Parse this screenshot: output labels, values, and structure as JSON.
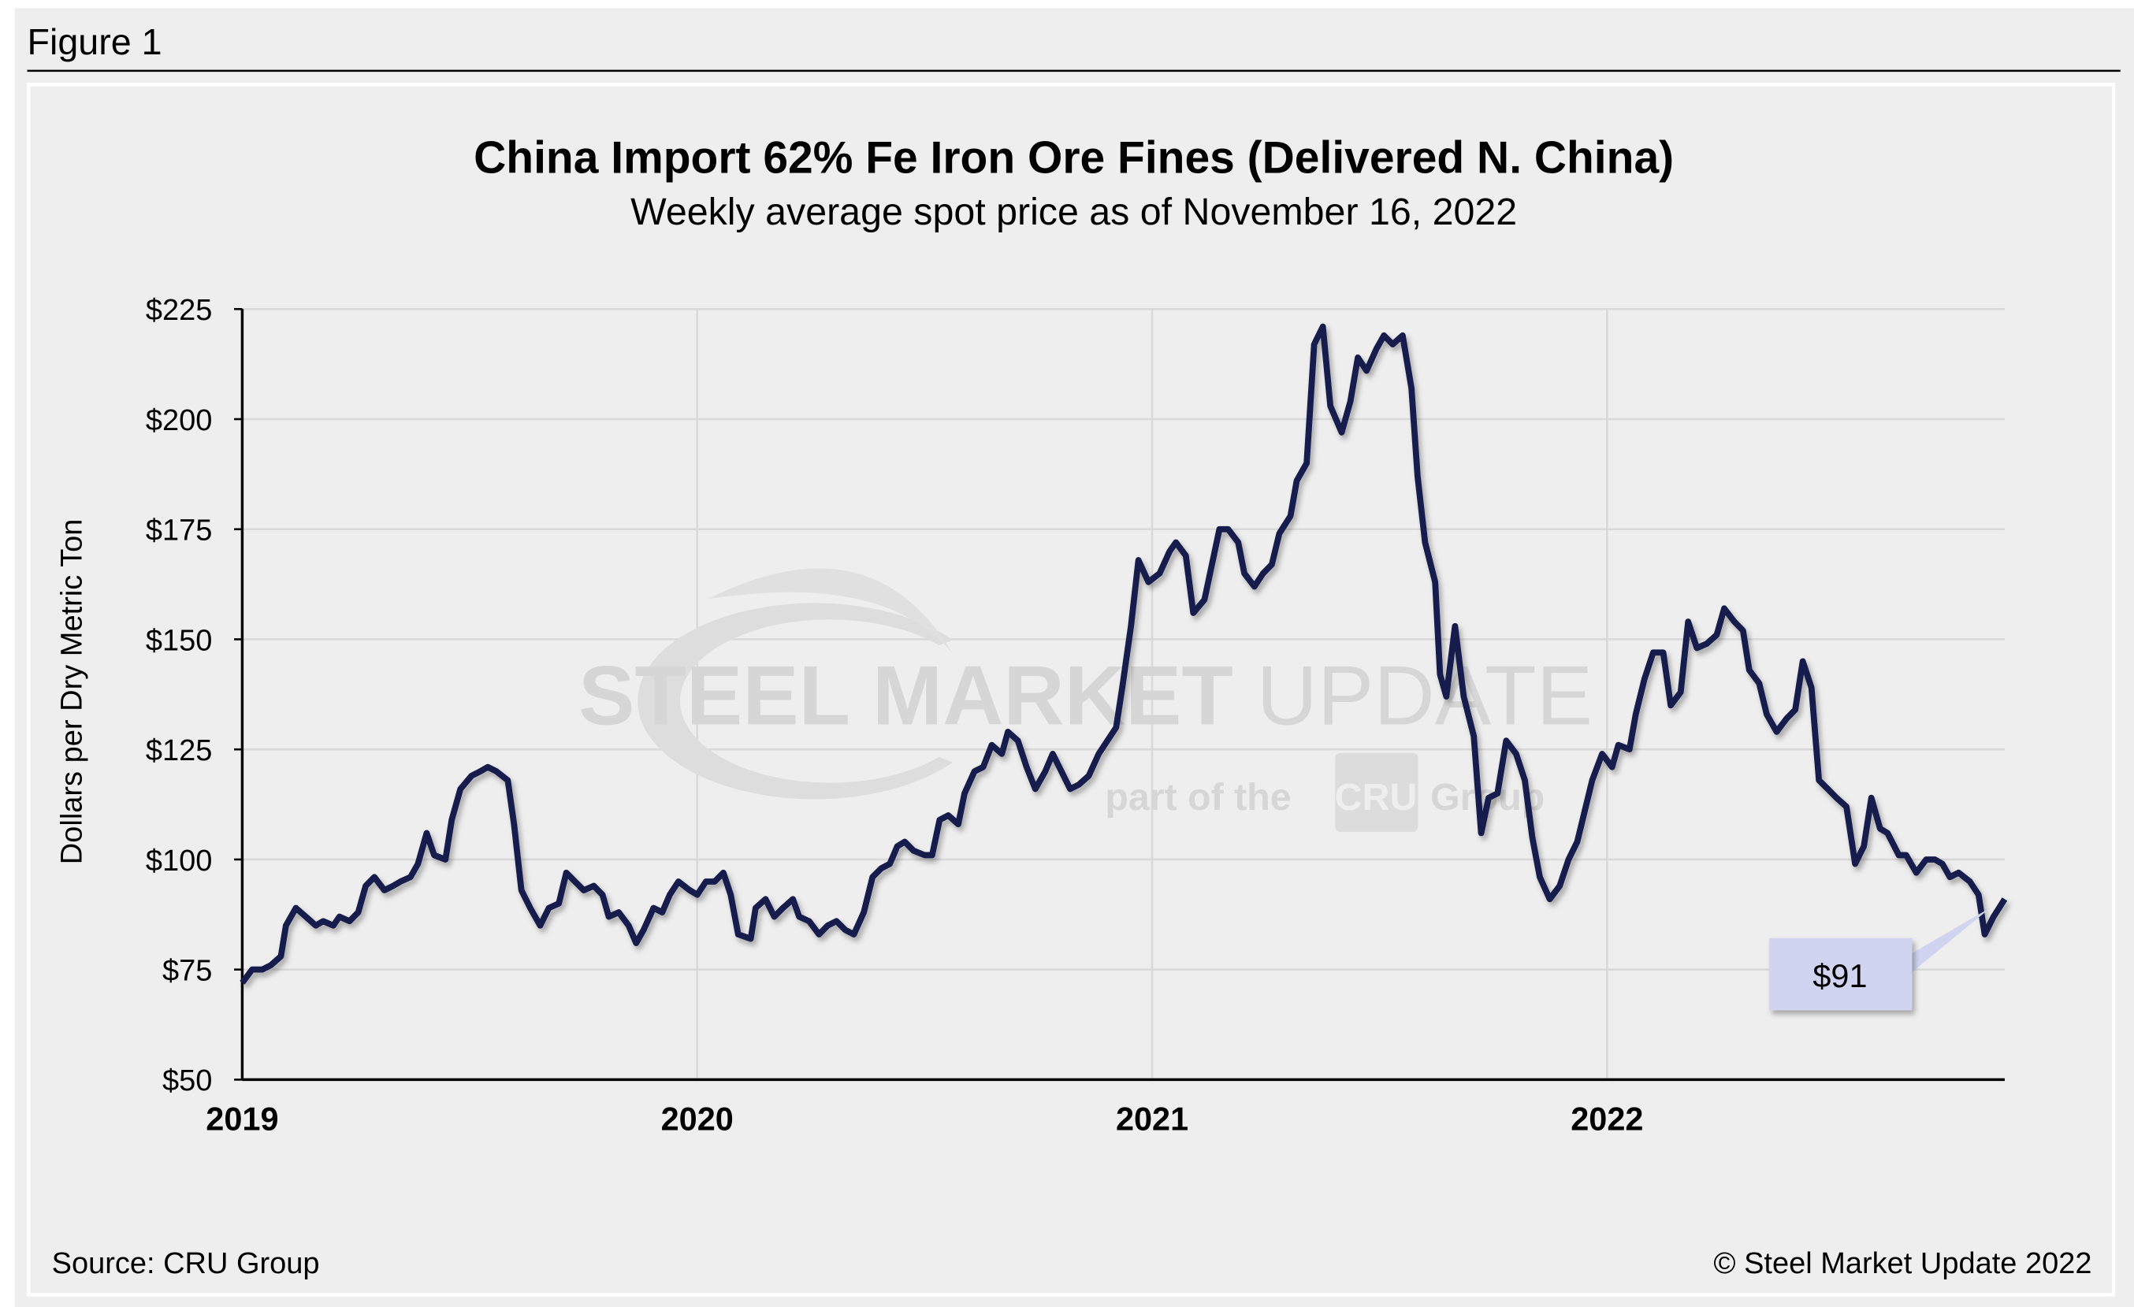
{
  "figure_label": "Figure 1",
  "source": "Source: CRU Group",
  "copyright": "© Steel Market Update 2022",
  "watermark": {
    "line1_bold": "STEEL MARKET",
    "line1_light": "UPDATE",
    "line2": "part of the",
    "logo": "CRU",
    "line2_end": "Group"
  },
  "colors": {
    "line": "#141c4c",
    "callout_fill": "#d0d4f0",
    "panel": "#eeeeee",
    "grid": "#d9d9d9",
    "watermark": "#d6d6d6"
  },
  "chart_data": {
    "type": "line",
    "title": "China Import 62% Fe Iron Ore Fines (Delivered N. China)",
    "subtitle": "Weekly average spot price as of November 16, 2022",
    "xlabel": "",
    "ylabel": "Dollars per Dry Metric Ton",
    "ylim": [
      50,
      225
    ],
    "xlim": [
      "2019-01-01",
      "2022-11-16"
    ],
    "y_ticks": [
      "$50",
      "$75",
      "$100",
      "$125",
      "$150",
      "$175",
      "$200",
      "$225"
    ],
    "y_tick_values": [
      50,
      75,
      100,
      125,
      150,
      175,
      200,
      225
    ],
    "x_ticks": [
      "2019",
      "2020",
      "2021",
      "2022"
    ],
    "grid": true,
    "annotation": {
      "text": "$91",
      "date": "2022-11-16",
      "value": 91
    },
    "series": [
      {
        "points": [
          [
            "2019-01-01",
            72
          ],
          [
            "2019-01-09",
            75
          ],
          [
            "2019-01-17",
            75
          ],
          [
            "2019-01-24",
            76
          ],
          [
            "2019-02-01",
            78
          ],
          [
            "2019-02-05",
            85
          ],
          [
            "2019-02-13",
            89
          ],
          [
            "2019-02-21",
            87
          ],
          [
            "2019-03-01",
            85
          ],
          [
            "2019-03-07",
            86
          ],
          [
            "2019-03-15",
            85
          ],
          [
            "2019-03-20",
            87
          ],
          [
            "2019-03-28",
            86
          ],
          [
            "2019-04-04",
            88
          ],
          [
            "2019-04-10",
            94
          ],
          [
            "2019-04-17",
            96
          ],
          [
            "2019-04-25",
            93
          ],
          [
            "2019-05-02",
            94
          ],
          [
            "2019-05-08",
            95
          ],
          [
            "2019-05-16",
            96
          ],
          [
            "2019-05-22",
            99
          ],
          [
            "2019-05-29",
            106
          ],
          [
            "2019-06-04",
            101
          ],
          [
            "2019-06-13",
            100
          ],
          [
            "2019-06-18",
            109
          ],
          [
            "2019-06-25",
            116
          ],
          [
            "2019-07-04",
            119
          ],
          [
            "2019-07-11",
            120
          ],
          [
            "2019-07-17",
            121
          ],
          [
            "2019-07-24",
            120
          ],
          [
            "2019-08-02",
            118
          ],
          [
            "2019-08-07",
            108
          ],
          [
            "2019-08-13",
            93
          ],
          [
            "2019-08-20",
            89
          ],
          [
            "2019-08-28",
            85
          ],
          [
            "2019-09-04",
            89
          ],
          [
            "2019-09-12",
            90
          ],
          [
            "2019-09-18",
            97
          ],
          [
            "2019-09-25",
            95
          ],
          [
            "2019-10-02",
            93
          ],
          [
            "2019-10-10",
            94
          ],
          [
            "2019-10-17",
            92
          ],
          [
            "2019-10-22",
            87
          ],
          [
            "2019-10-30",
            88
          ],
          [
            "2019-11-07",
            85
          ],
          [
            "2019-11-13",
            81
          ],
          [
            "2019-11-19",
            84
          ],
          [
            "2019-11-27",
            89
          ],
          [
            "2019-12-04",
            88
          ],
          [
            "2019-12-10",
            92
          ],
          [
            "2019-12-17",
            95
          ],
          [
            "2019-12-26",
            93
          ],
          [
            "2020-01-01",
            92
          ],
          [
            "2020-01-08",
            95
          ],
          [
            "2020-01-15",
            95
          ],
          [
            "2020-01-22",
            97
          ],
          [
            "2020-01-28",
            92
          ],
          [
            "2020-02-03",
            83
          ],
          [
            "2020-02-13",
            82
          ],
          [
            "2020-02-17",
            89
          ],
          [
            "2020-02-25",
            91
          ],
          [
            "2020-03-03",
            87
          ],
          [
            "2020-03-10",
            89
          ],
          [
            "2020-03-18",
            91
          ],
          [
            "2020-03-23",
            87
          ],
          [
            "2020-03-31",
            86
          ],
          [
            "2020-04-08",
            83
          ],
          [
            "2020-04-15",
            85
          ],
          [
            "2020-04-22",
            86
          ],
          [
            "2020-04-29",
            84
          ],
          [
            "2020-05-06",
            83
          ],
          [
            "2020-05-14",
            88
          ],
          [
            "2020-05-21",
            96
          ],
          [
            "2020-05-28",
            98
          ],
          [
            "2020-06-04",
            99
          ],
          [
            "2020-06-10",
            103
          ],
          [
            "2020-06-16",
            104
          ],
          [
            "2020-06-23",
            102
          ],
          [
            "2020-07-02",
            101
          ],
          [
            "2020-07-08",
            101
          ],
          [
            "2020-07-14",
            109
          ],
          [
            "2020-07-21",
            110
          ],
          [
            "2020-07-29",
            108
          ],
          [
            "2020-08-03",
            115
          ],
          [
            "2020-08-11",
            120
          ],
          [
            "2020-08-18",
            121
          ],
          [
            "2020-08-25",
            126
          ],
          [
            "2020-09-02",
            124
          ],
          [
            "2020-09-07",
            129
          ],
          [
            "2020-09-15",
            127
          ],
          [
            "2020-09-22",
            121
          ],
          [
            "2020-09-29",
            116
          ],
          [
            "2020-10-07",
            120
          ],
          [
            "2020-10-13",
            124
          ],
          [
            "2020-10-20",
            120
          ],
          [
            "2020-10-27",
            116
          ],
          [
            "2020-11-03",
            117
          ],
          [
            "2020-11-11",
            119
          ],
          [
            "2020-11-19",
            124
          ],
          [
            "2020-11-26",
            127
          ],
          [
            "2020-12-03",
            130
          ],
          [
            "2020-12-08",
            139
          ],
          [
            "2020-12-15",
            153
          ],
          [
            "2020-12-21",
            168
          ],
          [
            "2020-12-29",
            163
          ],
          [
            "2021-01-07",
            165
          ],
          [
            "2021-01-15",
            170
          ],
          [
            "2021-01-20",
            172
          ],
          [
            "2021-01-28",
            169
          ],
          [
            "2021-02-03",
            156
          ],
          [
            "2021-02-12",
            159
          ],
          [
            "2021-02-24",
            175
          ],
          [
            "2021-03-03",
            175
          ],
          [
            "2021-03-11",
            172
          ],
          [
            "2021-03-16",
            165
          ],
          [
            "2021-03-24",
            162
          ],
          [
            "2021-03-31",
            165
          ],
          [
            "2021-04-07",
            167
          ],
          [
            "2021-04-13",
            174
          ],
          [
            "2021-04-22",
            178
          ],
          [
            "2021-04-27",
            186
          ],
          [
            "2021-05-05",
            190
          ],
          [
            "2021-05-11",
            217
          ],
          [
            "2021-05-18",
            221
          ],
          [
            "2021-05-24",
            203
          ],
          [
            "2021-06-02",
            197
          ],
          [
            "2021-06-09",
            204
          ],
          [
            "2021-06-15",
            214
          ],
          [
            "2021-06-22",
            211
          ],
          [
            "2021-06-30",
            216
          ],
          [
            "2021-07-06",
            219
          ],
          [
            "2021-07-13",
            217
          ],
          [
            "2021-07-21",
            219
          ],
          [
            "2021-07-28",
            207
          ],
          [
            "2021-08-02",
            187
          ],
          [
            "2021-08-08",
            172
          ],
          [
            "2021-08-16",
            163
          ],
          [
            "2021-08-20",
            142
          ],
          [
            "2021-08-25",
            137
          ],
          [
            "2021-09-01",
            153
          ],
          [
            "2021-09-08",
            137
          ],
          [
            "2021-09-16",
            128
          ],
          [
            "2021-09-22",
            106
          ],
          [
            "2021-09-28",
            114
          ],
          [
            "2021-10-05",
            115
          ],
          [
            "2021-10-12",
            127
          ],
          [
            "2021-10-20",
            124
          ],
          [
            "2021-10-27",
            118
          ],
          [
            "2021-11-02",
            105
          ],
          [
            "2021-11-08",
            96
          ],
          [
            "2021-11-16",
            91
          ],
          [
            "2021-11-24",
            94
          ],
          [
            "2021-12-01",
            100
          ],
          [
            "2021-12-08",
            104
          ],
          [
            "2021-12-14",
            111
          ],
          [
            "2021-12-20",
            118
          ],
          [
            "2021-12-28",
            124
          ],
          [
            "2022-01-05",
            121
          ],
          [
            "2022-01-10",
            126
          ],
          [
            "2022-01-19",
            125
          ],
          [
            "2022-01-24",
            133
          ],
          [
            "2022-01-31",
            141
          ],
          [
            "2022-02-07",
            147
          ],
          [
            "2022-02-15",
            147
          ],
          [
            "2022-02-21",
            135
          ],
          [
            "2022-03-01",
            138
          ],
          [
            "2022-03-07",
            154
          ],
          [
            "2022-03-14",
            148
          ],
          [
            "2022-03-22",
            149
          ],
          [
            "2022-03-30",
            151
          ],
          [
            "2022-04-05",
            157
          ],
          [
            "2022-04-13",
            154
          ],
          [
            "2022-04-20",
            152
          ],
          [
            "2022-04-25",
            143
          ],
          [
            "2022-05-03",
            140
          ],
          [
            "2022-05-09",
            133
          ],
          [
            "2022-05-17",
            129
          ],
          [
            "2022-05-25",
            132
          ],
          [
            "2022-06-01",
            134
          ],
          [
            "2022-06-07",
            145
          ],
          [
            "2022-06-14",
            139
          ],
          [
            "2022-06-20",
            118
          ],
          [
            "2022-06-27",
            116
          ],
          [
            "2022-07-04",
            114
          ],
          [
            "2022-07-12",
            112
          ],
          [
            "2022-07-19",
            99
          ],
          [
            "2022-07-26",
            103
          ],
          [
            "2022-08-01",
            114
          ],
          [
            "2022-08-08",
            107
          ],
          [
            "2022-08-14",
            106
          ],
          [
            "2022-08-23",
            101
          ],
          [
            "2022-08-29",
            101
          ],
          [
            "2022-09-06",
            97
          ],
          [
            "2022-09-14",
            100
          ],
          [
            "2022-09-21",
            100
          ],
          [
            "2022-09-27",
            99
          ],
          [
            "2022-10-03",
            96
          ],
          [
            "2022-10-10",
            97
          ],
          [
            "2022-10-19",
            95
          ],
          [
            "2022-10-26",
            92
          ],
          [
            "2022-10-31",
            83
          ],
          [
            "2022-11-07",
            87
          ],
          [
            "2022-11-16",
            91
          ]
        ]
      }
    ]
  }
}
